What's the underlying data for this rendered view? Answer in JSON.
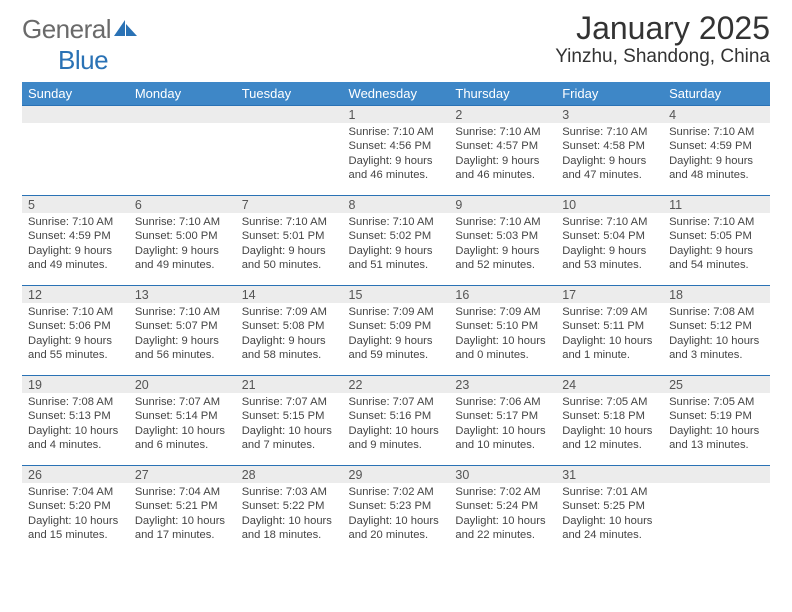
{
  "logo": {
    "text1": "General",
    "text2": "Blue"
  },
  "title": "January 2025",
  "location": "Yinzhu, Shandong, China",
  "colors": {
    "header_bg": "#3e87c7",
    "daynum_bg": "#ececec",
    "rule": "#2a72b5",
    "logo_gray": "#6a6a6a",
    "logo_blue": "#2a72b5",
    "text": "#333333"
  },
  "weekdays": [
    "Sunday",
    "Monday",
    "Tuesday",
    "Wednesday",
    "Thursday",
    "Friday",
    "Saturday"
  ],
  "layout": {
    "first_weekday_index": 3,
    "days_in_month": 31
  },
  "days": {
    "1": {
      "sunrise": "7:10 AM",
      "sunset": "4:56 PM",
      "daylight": "9 hours and 46 minutes."
    },
    "2": {
      "sunrise": "7:10 AM",
      "sunset": "4:57 PM",
      "daylight": "9 hours and 46 minutes."
    },
    "3": {
      "sunrise": "7:10 AM",
      "sunset": "4:58 PM",
      "daylight": "9 hours and 47 minutes."
    },
    "4": {
      "sunrise": "7:10 AM",
      "sunset": "4:59 PM",
      "daylight": "9 hours and 48 minutes."
    },
    "5": {
      "sunrise": "7:10 AM",
      "sunset": "4:59 PM",
      "daylight": "9 hours and 49 minutes."
    },
    "6": {
      "sunrise": "7:10 AM",
      "sunset": "5:00 PM",
      "daylight": "9 hours and 49 minutes."
    },
    "7": {
      "sunrise": "7:10 AM",
      "sunset": "5:01 PM",
      "daylight": "9 hours and 50 minutes."
    },
    "8": {
      "sunrise": "7:10 AM",
      "sunset": "5:02 PM",
      "daylight": "9 hours and 51 minutes."
    },
    "9": {
      "sunrise": "7:10 AM",
      "sunset": "5:03 PM",
      "daylight": "9 hours and 52 minutes."
    },
    "10": {
      "sunrise": "7:10 AM",
      "sunset": "5:04 PM",
      "daylight": "9 hours and 53 minutes."
    },
    "11": {
      "sunrise": "7:10 AM",
      "sunset": "5:05 PM",
      "daylight": "9 hours and 54 minutes."
    },
    "12": {
      "sunrise": "7:10 AM",
      "sunset": "5:06 PM",
      "daylight": "9 hours and 55 minutes."
    },
    "13": {
      "sunrise": "7:10 AM",
      "sunset": "5:07 PM",
      "daylight": "9 hours and 56 minutes."
    },
    "14": {
      "sunrise": "7:09 AM",
      "sunset": "5:08 PM",
      "daylight": "9 hours and 58 minutes."
    },
    "15": {
      "sunrise": "7:09 AM",
      "sunset": "5:09 PM",
      "daylight": "9 hours and 59 minutes."
    },
    "16": {
      "sunrise": "7:09 AM",
      "sunset": "5:10 PM",
      "daylight": "10 hours and 0 minutes."
    },
    "17": {
      "sunrise": "7:09 AM",
      "sunset": "5:11 PM",
      "daylight": "10 hours and 1 minute."
    },
    "18": {
      "sunrise": "7:08 AM",
      "sunset": "5:12 PM",
      "daylight": "10 hours and 3 minutes."
    },
    "19": {
      "sunrise": "7:08 AM",
      "sunset": "5:13 PM",
      "daylight": "10 hours and 4 minutes."
    },
    "20": {
      "sunrise": "7:07 AM",
      "sunset": "5:14 PM",
      "daylight": "10 hours and 6 minutes."
    },
    "21": {
      "sunrise": "7:07 AM",
      "sunset": "5:15 PM",
      "daylight": "10 hours and 7 minutes."
    },
    "22": {
      "sunrise": "7:07 AM",
      "sunset": "5:16 PM",
      "daylight": "10 hours and 9 minutes."
    },
    "23": {
      "sunrise": "7:06 AM",
      "sunset": "5:17 PM",
      "daylight": "10 hours and 10 minutes."
    },
    "24": {
      "sunrise": "7:05 AM",
      "sunset": "5:18 PM",
      "daylight": "10 hours and 12 minutes."
    },
    "25": {
      "sunrise": "7:05 AM",
      "sunset": "5:19 PM",
      "daylight": "10 hours and 13 minutes."
    },
    "26": {
      "sunrise": "7:04 AM",
      "sunset": "5:20 PM",
      "daylight": "10 hours and 15 minutes."
    },
    "27": {
      "sunrise": "7:04 AM",
      "sunset": "5:21 PM",
      "daylight": "10 hours and 17 minutes."
    },
    "28": {
      "sunrise": "7:03 AM",
      "sunset": "5:22 PM",
      "daylight": "10 hours and 18 minutes."
    },
    "29": {
      "sunrise": "7:02 AM",
      "sunset": "5:23 PM",
      "daylight": "10 hours and 20 minutes."
    },
    "30": {
      "sunrise": "7:02 AM",
      "sunset": "5:24 PM",
      "daylight": "10 hours and 22 minutes."
    },
    "31": {
      "sunrise": "7:01 AM",
      "sunset": "5:25 PM",
      "daylight": "10 hours and 24 minutes."
    }
  },
  "labels": {
    "sunrise": "Sunrise: ",
    "sunset": "Sunset: ",
    "daylight": "Daylight: "
  }
}
